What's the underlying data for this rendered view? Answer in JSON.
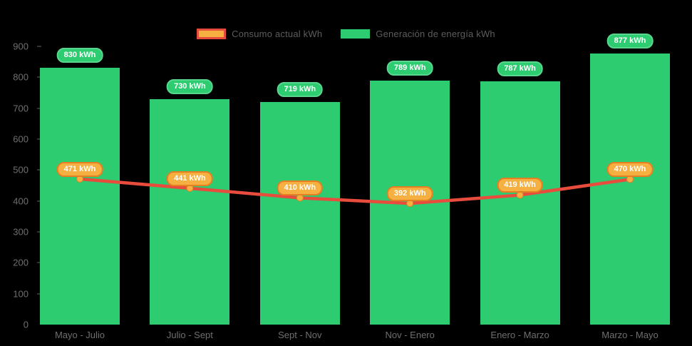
{
  "colors": {
    "background": "#000000",
    "bar_fill": "#2ecc71",
    "bar_pill_border": "#58d68d",
    "line_stroke": "#e74c3c",
    "marker_fill": "#f5b041",
    "marker_border": "#e67e22",
    "axis_text": "#6f6f6f",
    "legend_text": "#5c5d61"
  },
  "legend": [
    {
      "label": "Consumo actual kWh",
      "swatch": "orange-with-red-border"
    },
    {
      "label": "Generación de energía kWh",
      "swatch": "green"
    }
  ],
  "chart_data": {
    "type": "combo-bar-line",
    "categories": [
      "Mayo - Julio",
      "Julio - Sept",
      "Sept - Nov",
      "Nov - Enero",
      "Enero - Marzo",
      "Marzo - Mayo"
    ],
    "series": [
      {
        "name": "Generación de energía kWh",
        "type": "bar",
        "color": "#2ecc71",
        "values": [
          830,
          730,
          719,
          789,
          787,
          877
        ],
        "data_label_suffix": " kWh"
      },
      {
        "name": "Consumo actual kWh",
        "type": "line",
        "color": "#e74c3c",
        "marker_color": "#f5b041",
        "values": [
          471,
          441,
          410,
          392,
          419,
          470
        ],
        "data_label_suffix": " kWh"
      }
    ],
    "ylabel": "",
    "xlabel": "",
    "ylim": [
      0,
      900
    ],
    "yticks": [
      0,
      100,
      200,
      300,
      400,
      500,
      600,
      700,
      800,
      900
    ],
    "grid": false,
    "legend_position": "top-center",
    "data_labels": "pill-badges-above-points"
  }
}
